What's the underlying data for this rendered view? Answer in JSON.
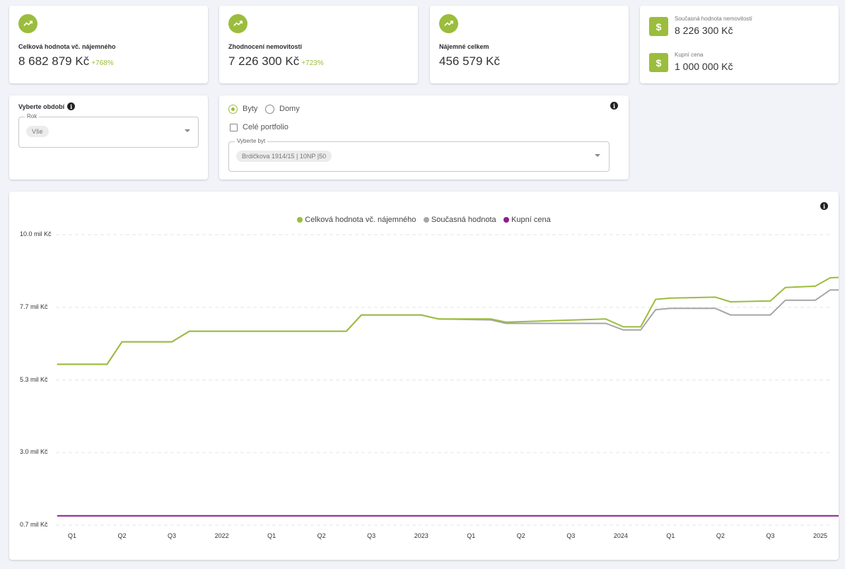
{
  "kpis": [
    {
      "label": "Celková hodnota vč. nájemného",
      "value": "8 682 879 Kč",
      "delta": "+768%",
      "icon": "trending-up-icon"
    },
    {
      "label": "Zhodnocení nemovitostí",
      "value": "7 226 300 Kč",
      "delta": "+723%",
      "icon": "trending-up-icon"
    },
    {
      "label": "Nájemné celkem",
      "value": "456 579 Kč",
      "delta": "",
      "icon": "trending-up-icon"
    }
  ],
  "summary": {
    "current_label": "Současná hodnota nemovitostí",
    "current_value": "8 226 300 Kč",
    "purchase_label": "Kupní cena",
    "purchase_value": "1 000 000 Kč",
    "icon": "dollar-icon"
  },
  "period": {
    "title": "Vyberte období",
    "field_label": "Rok",
    "selected": "Vše"
  },
  "property": {
    "radio_flats": "Byty",
    "radio_houses": "Domy",
    "selected_type": "Byty",
    "portfolio_label": "Celé portfolio",
    "portfolio_checked": false,
    "select_label": "Vyberte byt",
    "selected": "Brdičkova 1914/15 | 10NP |50"
  },
  "colors": {
    "accent": "#9bbd3d",
    "grey_series": "#a6a6a6",
    "purple_series": "#8e1d8e"
  },
  "chart_data": {
    "type": "line",
    "title": "",
    "xlabel": "",
    "ylabel": "",
    "categories": [
      "Q1",
      "Q2",
      "Q3",
      "2022",
      "Q1",
      "Q2",
      "Q3",
      "2023",
      "Q1",
      "Q2",
      "Q3",
      "2024",
      "Q1",
      "Q2",
      "Q3",
      "2025"
    ],
    "y_tick_labels": [
      "10.0 mil Kč",
      "7.7 mil Kč",
      "5.3 mil Kč",
      "3.0 mil Kč",
      "0.7 mil Kč"
    ],
    "y_ticks": [
      10.0,
      7.675,
      5.35,
      3.025,
      0.7
    ],
    "ylim": [
      0.7,
      10.0
    ],
    "xlim": [
      0,
      15
    ],
    "grid": true,
    "legend_position": "top-center",
    "series": [
      {
        "name": "Celková hodnota vč. nájemného",
        "color": "#9bbd3d",
        "points": [
          [
            -0.3,
            5.85
          ],
          [
            0.7,
            5.85
          ],
          [
            1.0,
            6.57
          ],
          [
            2.0,
            6.57
          ],
          [
            2.35,
            6.91
          ],
          [
            5.5,
            6.91
          ],
          [
            5.8,
            7.43
          ],
          [
            7.0,
            7.43
          ],
          [
            7.35,
            7.3
          ],
          [
            8.4,
            7.3
          ],
          [
            8.7,
            7.2
          ],
          [
            10.7,
            7.3
          ],
          [
            11.05,
            7.05
          ],
          [
            11.4,
            7.05
          ],
          [
            11.7,
            7.93
          ],
          [
            12.0,
            7.97
          ],
          [
            12.9,
            8.0
          ],
          [
            13.2,
            7.85
          ],
          [
            14.0,
            7.88
          ],
          [
            14.3,
            8.31
          ],
          [
            14.9,
            8.35
          ],
          [
            15.2,
            8.62
          ],
          [
            15.5,
            8.64
          ]
        ]
      },
      {
        "name": "Současná hodnota",
        "color": "#a6a6a6",
        "points": [
          [
            -0.3,
            5.85
          ],
          [
            0.7,
            5.85
          ],
          [
            1.0,
            6.57
          ],
          [
            2.0,
            6.57
          ],
          [
            2.35,
            6.91
          ],
          [
            5.5,
            6.91
          ],
          [
            5.8,
            7.43
          ],
          [
            7.0,
            7.43
          ],
          [
            7.35,
            7.3
          ],
          [
            8.4,
            7.27
          ],
          [
            8.7,
            7.16
          ],
          [
            10.7,
            7.16
          ],
          [
            11.05,
            6.95
          ],
          [
            11.4,
            6.95
          ],
          [
            11.7,
            7.6
          ],
          [
            12.0,
            7.64
          ],
          [
            12.9,
            7.64
          ],
          [
            13.2,
            7.43
          ],
          [
            14.0,
            7.43
          ],
          [
            14.3,
            7.9
          ],
          [
            14.9,
            7.9
          ],
          [
            15.2,
            8.23
          ],
          [
            15.5,
            8.23
          ]
        ]
      },
      {
        "name": "Kupní cena",
        "color": "#8e1d8e",
        "points": [
          [
            -0.3,
            1.0
          ],
          [
            15.5,
            1.0
          ]
        ]
      }
    ]
  }
}
